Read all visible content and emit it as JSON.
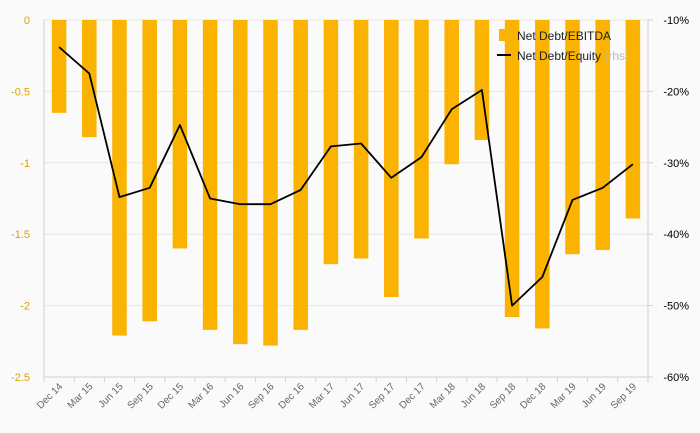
{
  "chart_data": {
    "type": "bar",
    "categories": [
      "Dec 14",
      "Mar 15",
      "Jun 15",
      "Sep 15",
      "Dec 15",
      "Mar 16",
      "Jun 16",
      "Sep 16",
      "Dec 16",
      "Mar 17",
      "Jun 17",
      "Sep 17",
      "Dec 17",
      "Mar 18",
      "Jun 18",
      "Sep 18",
      "Dec 18",
      "Mar 19",
      "Jun 19",
      "Sep 19"
    ],
    "series": [
      {
        "name": "Net Debt/EBITDA",
        "type": "bar",
        "axis": "left",
        "color": "#fab300",
        "values": [
          -0.65,
          -0.82,
          -2.21,
          -2.11,
          -1.6,
          -2.17,
          -2.27,
          -2.28,
          -2.17,
          -1.71,
          -1.67,
          -1.94,
          -1.53,
          -1.01,
          -0.84,
          -2.08,
          -2.16,
          -1.64,
          -1.61,
          -1.39
        ]
      },
      {
        "name": "Net Debt/Equity",
        "unit_label": "(rhs)",
        "type": "line",
        "axis": "right",
        "color": "#000000",
        "values": [
          -13.8,
          -17.5,
          -34.8,
          -33.5,
          -24.7,
          -35.0,
          -35.8,
          -35.8,
          -33.8,
          -27.7,
          -27.3,
          -32.1,
          -29.2,
          -22.5,
          -19.8,
          -50.0,
          -46.0,
          -35.2,
          -33.5,
          -30.2
        ]
      }
    ],
    "y_left": {
      "ylim": [
        -2.5,
        0
      ],
      "ticks": [
        0,
        -0.5,
        -1,
        -1.5,
        -2,
        -2.5
      ],
      "tick_labels": [
        "0",
        "-0.5",
        "-1",
        "-1.5",
        "-2",
        "-2.5"
      ]
    },
    "y_right": {
      "ylim": [
        -60,
        -10
      ],
      "ticks": [
        -10,
        -20,
        -30,
        -40,
        -50,
        -60
      ],
      "tick_labels": [
        "-10%",
        "-20%",
        "-30%",
        "-40%",
        "-50%",
        "-60%"
      ]
    },
    "grid": true,
    "legend": "top-right",
    "title": "",
    "xlabel": "",
    "ylabel": ""
  }
}
